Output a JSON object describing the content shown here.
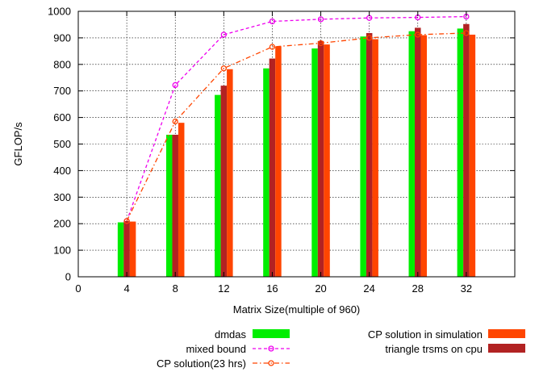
{
  "chart_data": {
    "type": "bar",
    "xlabel": "Matrix Size(multiple of 960)",
    "ylabel": "GFLOP/s",
    "xlim": [
      0,
      36
    ],
    "ylim": [
      0,
      1000
    ],
    "x_ticks": [
      "0",
      "4",
      "8",
      "12",
      "16",
      "20",
      "24",
      "28",
      "32"
    ],
    "y_ticks": [
      "0",
      "100",
      "200",
      "300",
      "400",
      "500",
      "600",
      "700",
      "800",
      "900",
      "1000"
    ],
    "grid": true,
    "legend_position": "bottom",
    "x": [
      4,
      8,
      12,
      16,
      20,
      24,
      28,
      32
    ],
    "bar_series": [
      {
        "name": "dmdas",
        "color": "#00ee00",
        "values": [
          205,
          535,
          685,
          785,
          860,
          905,
          925,
          935
        ]
      },
      {
        "name": "triangle trsms on cpu",
        "color": "#b22222",
        "values": [
          210,
          535,
          720,
          822,
          888,
          918,
          938,
          952
        ]
      },
      {
        "name": "CP solution in simulation",
        "color": "#ff4500",
        "values": [
          208,
          580,
          782,
          868,
          875,
          895,
          910,
          912
        ]
      }
    ],
    "line_series": [
      {
        "name": "mixed bound",
        "color": "#ee00ee",
        "values": [
          210,
          722,
          912,
          962,
          970,
          975,
          977,
          980
        ]
      },
      {
        "name": "CP solution(23 hrs)",
        "color": "#ff4500",
        "values": [
          210,
          585,
          785,
          866,
          880,
          900,
          912,
          918
        ]
      }
    ]
  }
}
